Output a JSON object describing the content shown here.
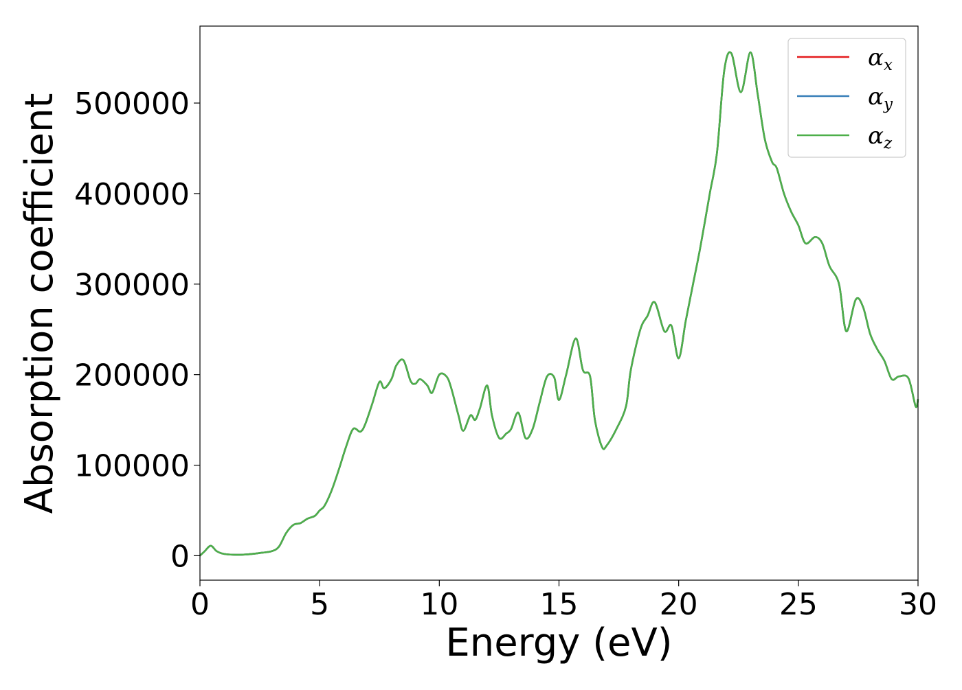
{
  "chart_data": {
    "type": "line",
    "title": "",
    "xlabel": "Energy (eV)",
    "ylabel": "Absorption coefficient",
    "xlim": [
      0,
      30
    ],
    "ylim": [
      -27000,
      585000
    ],
    "xticks": [
      0,
      5,
      10,
      15,
      20,
      25,
      30
    ],
    "xtick_labels": [
      "0",
      "5",
      "10",
      "15",
      "20",
      "25",
      "30"
    ],
    "yticks": [
      0,
      100000,
      200000,
      300000,
      400000,
      500000
    ],
    "ytick_labels": [
      "0",
      "100000",
      "200000",
      "300000",
      "400000",
      "500000"
    ],
    "grid": false,
    "legend_position": "top-right",
    "x": [
      0,
      0.2,
      0.45,
      0.7,
      1.0,
      1.5,
      2.0,
      2.5,
      3.0,
      3.3,
      3.6,
      3.9,
      4.2,
      4.5,
      4.8,
      5.0,
      5.2,
      5.5,
      5.8,
      6.1,
      6.4,
      6.7,
      6.9,
      7.2,
      7.5,
      7.7,
      8.0,
      8.2,
      8.5,
      8.8,
      9.0,
      9.2,
      9.5,
      9.7,
      10.0,
      10.3,
      10.5,
      10.8,
      11.0,
      11.3,
      11.5,
      11.7,
      12.0,
      12.2,
      12.5,
      12.8,
      13.0,
      13.3,
      13.6,
      13.9,
      14.2,
      14.5,
      14.8,
      15.0,
      15.3,
      15.7,
      16.0,
      16.3,
      16.5,
      16.8,
      17.0,
      17.4,
      17.8,
      18.0,
      18.4,
      18.7,
      19.0,
      19.4,
      19.7,
      20.0,
      20.3,
      20.6,
      20.9,
      21.3,
      21.6,
      21.9,
      22.2,
      22.6,
      23.0,
      23.3,
      23.6,
      23.9,
      24.1,
      24.4,
      24.7,
      25.0,
      25.3,
      25.7,
      26.0,
      26.3,
      26.7,
      27.0,
      27.4,
      27.7,
      28.0,
      28.3,
      28.6,
      28.9,
      29.2,
      29.6,
      29.9,
      30.0
    ],
    "series": [
      {
        "name": "αx",
        "label_base": "α",
        "label_sub": "x",
        "color": "#e41a1c",
        "values": [
          0,
          5000,
          11000,
          5000,
          2000,
          1000,
          1500,
          3000,
          5000,
          10000,
          25000,
          34000,
          36000,
          41000,
          44000,
          50000,
          55000,
          72000,
          95000,
          120000,
          140000,
          137000,
          145000,
          168000,
          192000,
          185000,
          195000,
          210000,
          216000,
          193000,
          190000,
          195000,
          188000,
          180000,
          200000,
          198000,
          185000,
          155000,
          138000,
          155000,
          150000,
          163000,
          188000,
          155000,
          130000,
          135000,
          140000,
          158000,
          130000,
          140000,
          170000,
          198000,
          197000,
          172000,
          200000,
          240000,
          205000,
          198000,
          150000,
          120000,
          122000,
          140000,
          165000,
          205000,
          250000,
          265000,
          280000,
          248000,
          254000,
          218000,
          260000,
          300000,
          340000,
          400000,
          445000,
          535000,
          555000,
          512000,
          556000,
          510000,
          460000,
          435000,
          428000,
          400000,
          380000,
          365000,
          345000,
          352000,
          345000,
          320000,
          300000,
          248000,
          283000,
          275000,
          245000,
          228000,
          215000,
          195000,
          198000,
          196000,
          165000,
          173000
        ]
      },
      {
        "name": "αy",
        "label_base": "α",
        "label_sub": "y",
        "color": "#377eb8",
        "values": [
          0,
          5000,
          11000,
          5000,
          2000,
          1000,
          1500,
          3000,
          5000,
          10000,
          25000,
          34000,
          36000,
          41000,
          44000,
          50000,
          55000,
          72000,
          95000,
          120000,
          140000,
          137000,
          145000,
          168000,
          192000,
          185000,
          195000,
          210000,
          216000,
          193000,
          190000,
          195000,
          188000,
          180000,
          200000,
          198000,
          185000,
          155000,
          138000,
          155000,
          150000,
          163000,
          188000,
          155000,
          130000,
          135000,
          140000,
          158000,
          130000,
          140000,
          170000,
          198000,
          197000,
          172000,
          200000,
          240000,
          205000,
          198000,
          150000,
          120000,
          122000,
          140000,
          165000,
          205000,
          250000,
          265000,
          280000,
          248000,
          254000,
          218000,
          260000,
          300000,
          340000,
          400000,
          445000,
          535000,
          555000,
          512000,
          556000,
          510000,
          460000,
          435000,
          428000,
          400000,
          380000,
          365000,
          345000,
          352000,
          345000,
          320000,
          300000,
          248000,
          283000,
          275000,
          245000,
          228000,
          215000,
          195000,
          198000,
          196000,
          165000,
          173000
        ]
      },
      {
        "name": "αz",
        "label_base": "α",
        "label_sub": "z",
        "color": "#4daf4a",
        "values": [
          0,
          5000,
          11000,
          5000,
          2000,
          1000,
          1500,
          3000,
          5000,
          10000,
          25000,
          34000,
          36000,
          41000,
          44000,
          50000,
          55000,
          72000,
          95000,
          120000,
          140000,
          137000,
          145000,
          168000,
          192000,
          185000,
          195000,
          210000,
          216000,
          193000,
          190000,
          195000,
          188000,
          180000,
          200000,
          198000,
          185000,
          155000,
          138000,
          155000,
          150000,
          163000,
          188000,
          155000,
          130000,
          135000,
          140000,
          158000,
          130000,
          140000,
          170000,
          198000,
          197000,
          172000,
          200000,
          240000,
          205000,
          198000,
          150000,
          120000,
          122000,
          140000,
          165000,
          205000,
          250000,
          265000,
          280000,
          248000,
          254000,
          218000,
          260000,
          300000,
          340000,
          400000,
          445000,
          535000,
          555000,
          512000,
          556000,
          510000,
          460000,
          435000,
          428000,
          400000,
          380000,
          365000,
          345000,
          352000,
          345000,
          320000,
          300000,
          248000,
          283000,
          275000,
          245000,
          228000,
          215000,
          195000,
          198000,
          196000,
          165000,
          173000
        ]
      }
    ]
  }
}
